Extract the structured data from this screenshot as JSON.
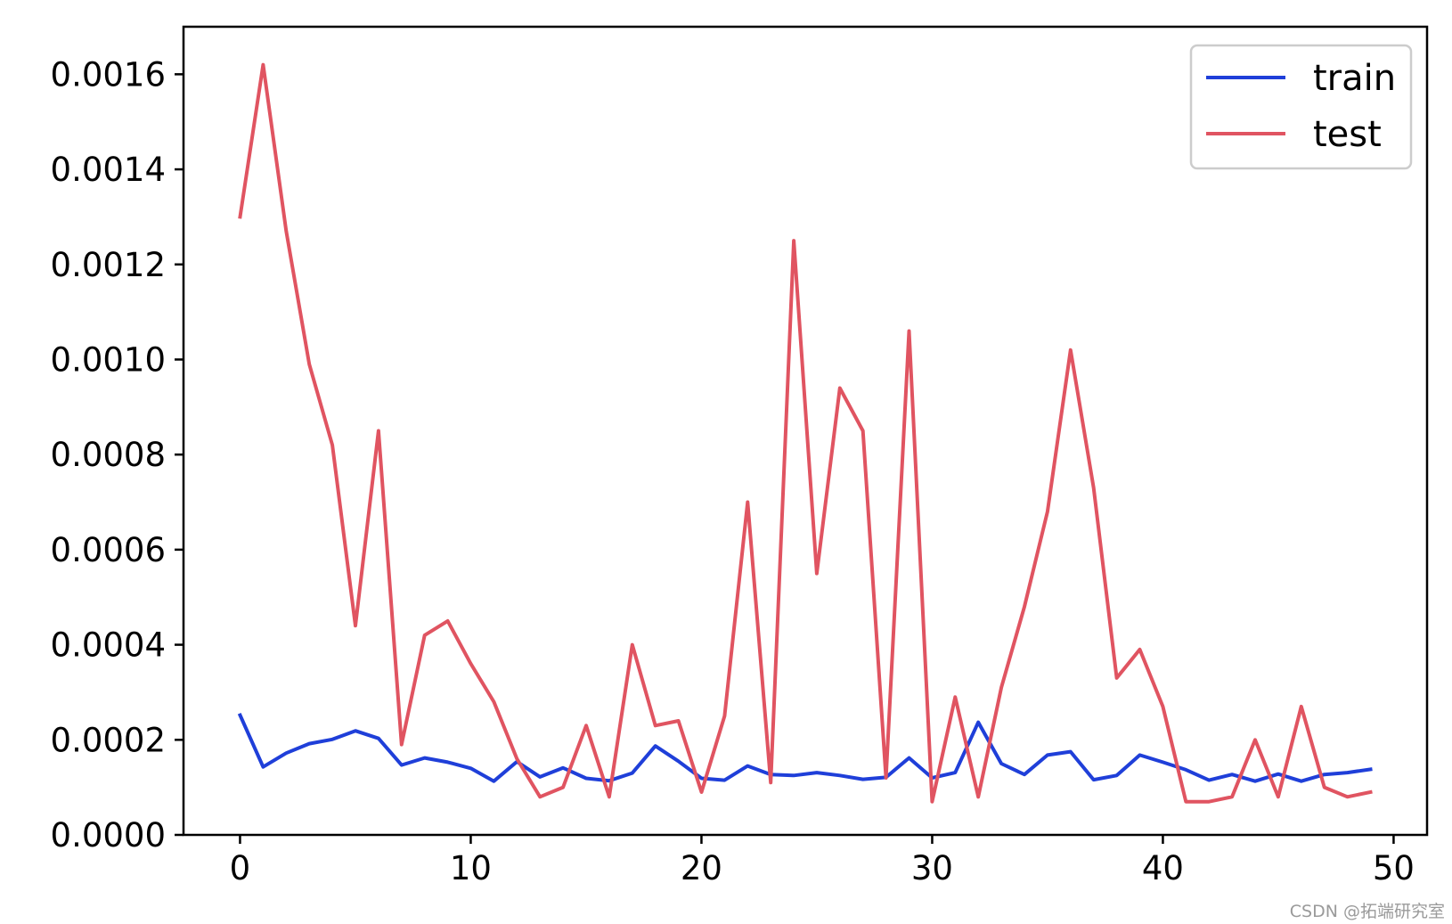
{
  "chart_data": {
    "type": "line",
    "title": "",
    "xlabel": "",
    "ylabel": "",
    "xlim": [
      -2.45,
      51.45
    ],
    "ylim": [
      0,
      0.0017
    ],
    "x_ticks": [
      0,
      10,
      20,
      30,
      40,
      50
    ],
    "x_tick_labels": [
      "0",
      "10",
      "20",
      "30",
      "40",
      "50"
    ],
    "y_ticks": [
      0,
      0.0002,
      0.0004,
      0.0006,
      0.0008,
      0.001,
      0.0012,
      0.0014,
      0.0016
    ],
    "y_tick_labels": [
      "0.0000",
      "0.0002",
      "0.0004",
      "0.0006",
      "0.0008",
      "0.0010",
      "0.0012",
      "0.0014",
      "0.0016"
    ],
    "grid": false,
    "legend_position": "top-right",
    "x": [
      0,
      1,
      2,
      3,
      4,
      5,
      6,
      7,
      8,
      9,
      10,
      11,
      12,
      13,
      14,
      15,
      16,
      17,
      18,
      19,
      20,
      21,
      22,
      23,
      24,
      25,
      26,
      27,
      28,
      29,
      30,
      31,
      32,
      33,
      34,
      35,
      36,
      37,
      38,
      39,
      40,
      41,
      42,
      43,
      44,
      45,
      46,
      47,
      48,
      49
    ],
    "series": [
      {
        "name": "train",
        "color": "#1f3fd9",
        "values": [
          0.000252,
          0.000143,
          0.000172,
          0.000192,
          0.000201,
          0.000219,
          0.000203,
          0.000147,
          0.000162,
          0.000153,
          0.00014,
          0.000113,
          0.000154,
          0.000122,
          0.000141,
          0.000119,
          0.000114,
          0.00013,
          0.000187,
          0.000155,
          0.000119,
          0.000115,
          0.000145,
          0.000127,
          0.000125,
          0.000131,
          0.000125,
          0.000117,
          0.000121,
          0.000162,
          0.00012,
          0.000131,
          0.000237,
          0.00015,
          0.000127,
          0.000168,
          0.000175,
          0.000116,
          0.000125,
          0.000168,
          0.000153,
          0.000137,
          0.000115,
          0.000127,
          0.000113,
          0.000128,
          0.000113,
          0.000127,
          0.000131,
          0.000138
        ]
      },
      {
        "name": "test",
        "color": "#e05461",
        "values": [
          0.0013,
          0.00162,
          0.00127,
          0.00099,
          0.00082,
          0.00044,
          0.00085,
          0.00019,
          0.00042,
          0.00045,
          0.00036,
          0.00028,
          0.00016,
          8e-05,
          0.0001,
          0.00023,
          8e-05,
          0.0004,
          0.00023,
          0.00024,
          9e-05,
          0.00025,
          0.0007,
          0.00011,
          0.00125,
          0.00055,
          0.00094,
          0.00085,
          0.00012,
          0.00106,
          7e-05,
          0.00029,
          8e-05,
          0.00031,
          0.00048,
          0.00068,
          0.00102,
          0.00073,
          0.00033,
          0.00039,
          0.00027,
          7e-05,
          7e-05,
          8e-05,
          0.0002,
          8e-05,
          0.00027,
          0.0001,
          8e-05,
          9e-05
        ]
      }
    ]
  },
  "watermark": "CSDN @拓端研究室"
}
